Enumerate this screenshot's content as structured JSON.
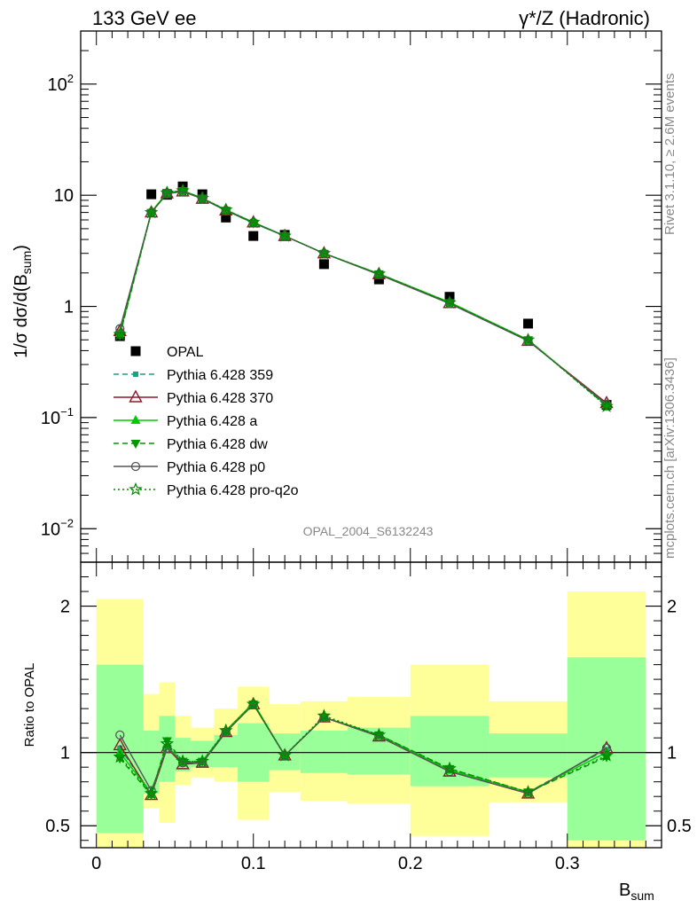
{
  "header": {
    "left": "133 GeV ee",
    "right": "γ*/Z (Hadronic)"
  },
  "side_labels": {
    "rivet": "Rivet 3.1.10, ≥ 2.6M events",
    "mcplots": "mcplots.cern.ch [arXiv:1306.3436]"
  },
  "analysis_id": "OPAL_2004_S6132243",
  "chart_data": [
    {
      "type": "scatter",
      "yscale": "log",
      "xlim": [
        -0.01,
        0.36
      ],
      "ylim": [
        0.005,
        300
      ],
      "ylabel": "1/σ dσ/d(B_sum)",
      "yticks": [
        {
          "value": 0.01,
          "label": "10",
          "sup": "−2"
        },
        {
          "value": 0.1,
          "label": "10",
          "sup": "−1"
        },
        {
          "value": 1,
          "label": "1",
          "sup": ""
        },
        {
          "value": 10,
          "label": "10",
          "sup": ""
        },
        {
          "value": 100,
          "label": "10",
          "sup": "2"
        }
      ],
      "x": [
        0.015,
        0.035,
        0.045,
        0.055,
        0.0675,
        0.0825,
        0.1,
        0.12,
        0.145,
        0.18,
        0.225,
        0.275,
        0.325
      ],
      "series": [
        {
          "name": "OPAL",
          "color": "#000000",
          "marker": "square",
          "line": "none",
          "values": [
            0.54,
            10.2,
            10.1,
            12.0,
            10.2,
            6.3,
            4.3,
            4.4,
            2.4,
            1.75,
            1.22,
            0.7,
            0.13
          ]
        },
        {
          "name": "Pythia 6.428 359",
          "color": "#1aa383",
          "marker": "square-small",
          "line": "dashed",
          "values": [
            0.59,
            7.0,
            10.4,
            10.9,
            9.4,
            7.3,
            5.6,
            4.3,
            3.0,
            1.95,
            1.08,
            0.5,
            0.13
          ]
        },
        {
          "name": "Pythia 6.428 370",
          "color": "#8b1a2b",
          "marker": "triangle-open",
          "line": "solid",
          "values": [
            0.6,
            7.0,
            10.4,
            10.8,
            9.3,
            7.3,
            5.7,
            4.3,
            3.0,
            1.95,
            1.07,
            0.49,
            0.135
          ]
        },
        {
          "name": "Pythia 6.428 a",
          "color": "#00cc00",
          "marker": "triangle",
          "line": "solid",
          "values": [
            0.57,
            7.1,
            10.5,
            11.0,
            9.4,
            7.4,
            5.7,
            4.3,
            3.0,
            1.97,
            1.09,
            0.5,
            0.13
          ]
        },
        {
          "name": "Pythia 6.428 dw",
          "color": "#009900",
          "marker": "triangle-down",
          "line": "dashed",
          "values": [
            0.55,
            7.0,
            10.6,
            11.0,
            9.4,
            7.3,
            5.6,
            4.3,
            3.0,
            1.96,
            1.08,
            0.5,
            0.127
          ]
        },
        {
          "name": "Pythia 6.428 p0",
          "color": "#555555",
          "marker": "circle-open",
          "line": "solid",
          "values": [
            0.63,
            7.0,
            10.3,
            10.8,
            9.3,
            7.3,
            5.7,
            4.3,
            3.0,
            1.93,
            1.06,
            0.49,
            0.132
          ]
        },
        {
          "name": "Pythia 6.428 pro-q2o",
          "color": "#008800",
          "marker": "star",
          "line": "dotted",
          "values": [
            0.56,
            7.0,
            10.5,
            11.0,
            9.4,
            7.4,
            5.7,
            4.3,
            3.0,
            1.96,
            1.08,
            0.5,
            0.126
          ]
        }
      ],
      "legend": "left-lower"
    },
    {
      "type": "scatter",
      "xlim": [
        -0.01,
        0.36
      ],
      "ylim": [
        0.35,
        2.3
      ],
      "xlabel": "B_sum",
      "ylabel": "Ratio to OPAL",
      "xticks": [
        0,
        0.1,
        0.2,
        0.3
      ],
      "xticklabels": [
        "0",
        "0.1",
        "0.2",
        "0.3"
      ],
      "yticks": [
        0.5,
        1,
        2
      ],
      "yticklabels": [
        "0.5",
        "1",
        "2"
      ],
      "reference_line": 1,
      "bands": [
        {
          "x": [
            0.0,
            0.03
          ],
          "inner": [
            0.45,
            1.6
          ],
          "outer": [
            0.3,
            2.05
          ]
        },
        {
          "x": [
            0.03,
            0.04
          ],
          "inner": [
            0.72,
            1.15
          ],
          "outer": [
            0.62,
            1.4
          ]
        },
        {
          "x": [
            0.04,
            0.05
          ],
          "inner": [
            0.8,
            1.25
          ],
          "outer": [
            0.52,
            1.48
          ]
        },
        {
          "x": [
            0.05,
            0.06
          ],
          "inner": [
            0.87,
            1.1
          ],
          "outer": [
            0.78,
            1.25
          ]
        },
        {
          "x": [
            0.06,
            0.075
          ],
          "inner": [
            0.9,
            1.08
          ],
          "outer": [
            0.83,
            1.17
          ]
        },
        {
          "x": [
            0.075,
            0.09
          ],
          "inner": [
            0.9,
            1.12
          ],
          "outer": [
            0.8,
            1.3
          ]
        },
        {
          "x": [
            0.09,
            0.11
          ],
          "inner": [
            0.8,
            1.2
          ],
          "outer": [
            0.54,
            1.45
          ]
        },
        {
          "x": [
            0.11,
            0.13
          ],
          "inner": [
            0.88,
            1.13
          ],
          "outer": [
            0.73,
            1.33
          ]
        },
        {
          "x": [
            0.13,
            0.16
          ],
          "inner": [
            0.86,
            1.15
          ],
          "outer": [
            0.67,
            1.35
          ]
        },
        {
          "x": [
            0.16,
            0.2
          ],
          "inner": [
            0.85,
            1.17
          ],
          "outer": [
            0.65,
            1.38
          ]
        },
        {
          "x": [
            0.2,
            0.25
          ],
          "inner": [
            0.77,
            1.25
          ],
          "outer": [
            0.43,
            1.6
          ]
        },
        {
          "x": [
            0.25,
            0.3
          ],
          "inner": [
            0.83,
            1.13
          ],
          "outer": [
            0.66,
            1.35
          ]
        },
        {
          "x": [
            0.3,
            0.35
          ],
          "inner": [
            0.4,
            1.65
          ],
          "outer": [
            0.3,
            2.1
          ]
        }
      ],
      "band_colors": {
        "inner": "#99ff99",
        "outer": "#ffff99"
      },
      "x": [
        0.015,
        0.035,
        0.045,
        0.055,
        0.0675,
        0.0825,
        0.1,
        0.12,
        0.145,
        0.18,
        0.225,
        0.275,
        0.325
      ],
      "series": [
        {
          "name": "Pythia 6.428 359",
          "color": "#1aa383",
          "marker": "square-small",
          "line": "dashed",
          "values": [
            1.03,
            0.72,
            1.04,
            0.93,
            0.93,
            1.14,
            1.33,
            0.98,
            1.24,
            1.12,
            0.88,
            0.73,
            1.02
          ]
        },
        {
          "name": "Pythia 6.428 370",
          "color": "#8b1a2b",
          "marker": "triangle-open",
          "line": "solid",
          "values": [
            1.05,
            0.71,
            1.03,
            0.92,
            0.93,
            1.14,
            1.33,
            0.98,
            1.24,
            1.11,
            0.87,
            0.72,
            1.03
          ]
        },
        {
          "name": "Pythia 6.428 a",
          "color": "#00cc00",
          "marker": "triangle",
          "line": "solid",
          "values": [
            1.0,
            0.72,
            1.05,
            0.93,
            0.94,
            1.15,
            1.34,
            0.98,
            1.24,
            1.12,
            0.88,
            0.73,
            1.0
          ]
        },
        {
          "name": "Pythia 6.428 dw",
          "color": "#009900",
          "marker": "triangle-down",
          "line": "dashed",
          "values": [
            0.96,
            0.71,
            1.08,
            0.94,
            0.94,
            1.14,
            1.33,
            0.98,
            1.24,
            1.12,
            0.89,
            0.73,
            0.97
          ]
        },
        {
          "name": "Pythia 6.428 p0",
          "color": "#555555",
          "marker": "circle-open",
          "line": "solid",
          "values": [
            1.12,
            0.74,
            1.03,
            0.93,
            0.93,
            1.14,
            1.33,
            0.98,
            1.24,
            1.11,
            0.87,
            0.72,
            1.03
          ]
        },
        {
          "name": "Pythia 6.428 pro-q2o",
          "color": "#008800",
          "marker": "star",
          "line": "dotted",
          "values": [
            0.97,
            0.72,
            1.06,
            0.94,
            0.94,
            1.15,
            1.33,
            0.98,
            1.25,
            1.12,
            0.89,
            0.73,
            0.98
          ]
        }
      ]
    }
  ]
}
